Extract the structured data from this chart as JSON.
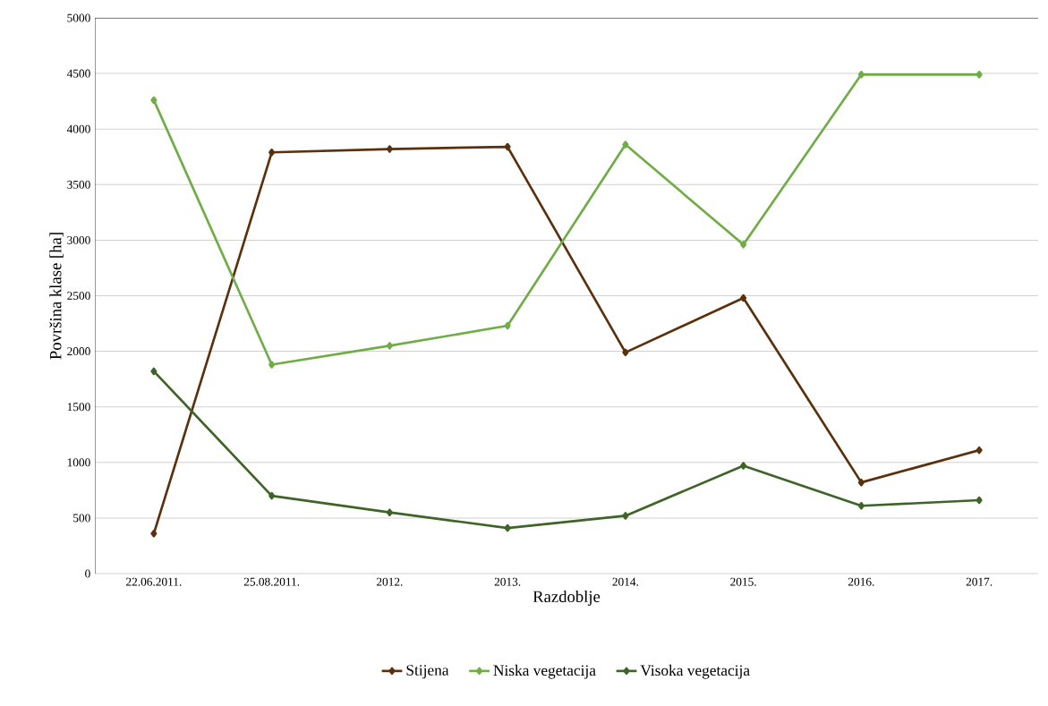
{
  "chart_data": {
    "type": "line",
    "xlabel": "Razdoblje",
    "ylabel": "Površina klase [ha]",
    "categories": [
      "22.06.2011.",
      "25.08.2011.",
      "2012.",
      "2013.",
      "2014.",
      "2015.",
      "2016.",
      "2017."
    ],
    "series": [
      {
        "name": "Stijena",
        "color": "#5b300c",
        "values": [
          360,
          3790,
          3820,
          3840,
          1990,
          2480,
          820,
          1110
        ]
      },
      {
        "name": "Niska vegetacija",
        "color": "#70ad47",
        "values": [
          4260,
          1880,
          2050,
          2230,
          3860,
          2960,
          4490,
          4490
        ]
      },
      {
        "name": "Visoka vegetacija",
        "color": "#3f6427",
        "values": [
          1820,
          700,
          550,
          410,
          520,
          970,
          610,
          660
        ]
      }
    ],
    "ylim": [
      0,
      5000
    ],
    "yticks": [
      0,
      500,
      1000,
      1500,
      2000,
      2500,
      3000,
      3500,
      4000,
      4500,
      5000
    ],
    "grid": "y",
    "legend": "bottom",
    "marker": "diamond",
    "line_style": "solid"
  }
}
